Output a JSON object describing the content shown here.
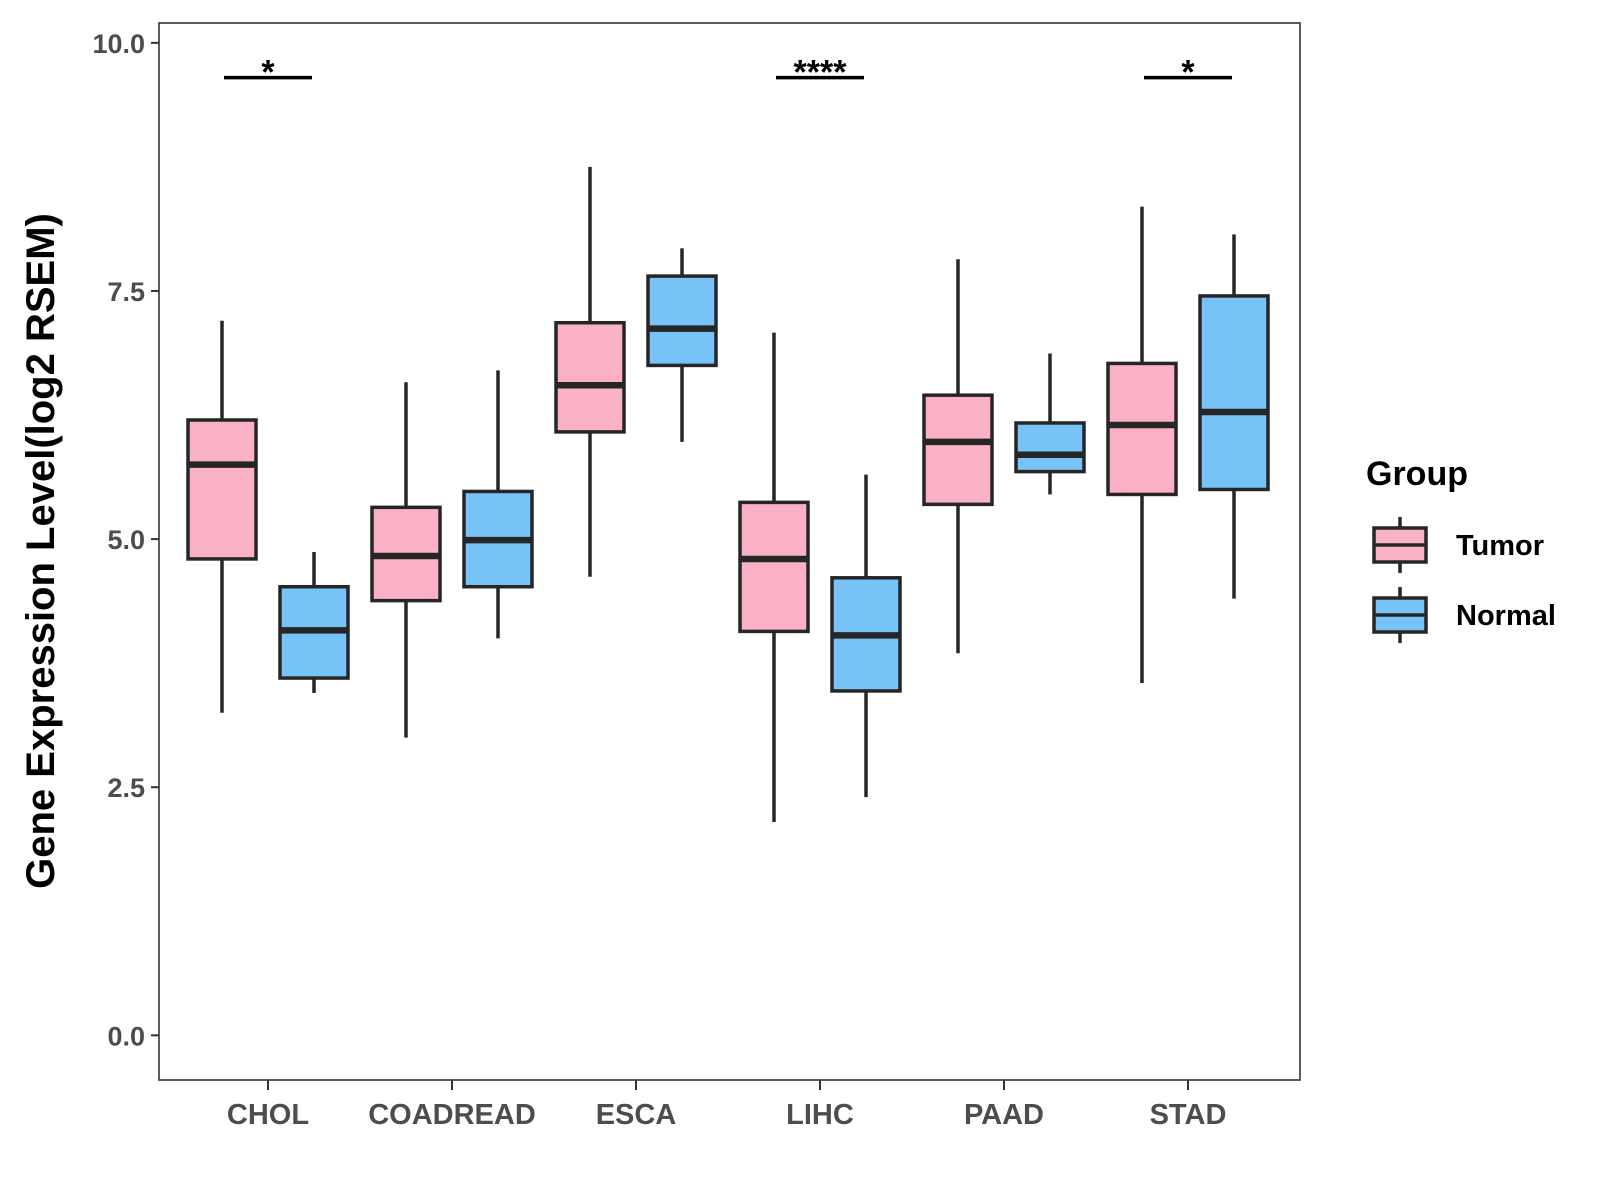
{
  "chart_data": {
    "type": "boxplot",
    "title": "",
    "xlabel": "",
    "ylabel": "Gene Expression Level(log2 RSEM)",
    "ylim": [
      -0.45,
      10.2
    ],
    "yticks": [
      "0.0",
      "2.5",
      "5.0",
      "7.5",
      "10.0"
    ],
    "ytick_values": [
      0,
      2.5,
      5,
      7.5,
      10
    ],
    "categories": [
      "CHOL",
      "COADREAD",
      "ESCA",
      "LIHC",
      "PAAD",
      "STAD"
    ],
    "legend": {
      "title": "Group",
      "position": "right",
      "entries": [
        {
          "name": "Tumor",
          "color": "#fbb1c5"
        },
        {
          "name": "Normal",
          "color": "#77c3f8"
        }
      ]
    },
    "series": [
      {
        "name": "Tumor",
        "color": "#fbb1c5",
        "boxes": [
          {
            "category": "CHOL",
            "min": 3.25,
            "q1": 4.8,
            "median": 5.75,
            "q3": 6.2,
            "max": 7.2
          },
          {
            "category": "COADREAD",
            "min": 3.0,
            "q1": 4.38,
            "median": 4.83,
            "q3": 5.32,
            "max": 6.58
          },
          {
            "category": "ESCA",
            "min": 4.62,
            "q1": 6.08,
            "median": 6.55,
            "q3": 7.18,
            "max": 8.75
          },
          {
            "category": "LIHC",
            "min": 2.15,
            "q1": 4.07,
            "median": 4.8,
            "q3": 5.37,
            "max": 7.08
          },
          {
            "category": "PAAD",
            "min": 3.85,
            "q1": 5.35,
            "median": 5.98,
            "q3": 6.45,
            "max": 7.82
          },
          {
            "category": "STAD",
            "min": 3.55,
            "q1": 5.45,
            "median": 6.15,
            "q3": 6.77,
            "max": 8.35
          }
        ]
      },
      {
        "name": "Normal",
        "color": "#77c3f8",
        "boxes": [
          {
            "category": "CHOL",
            "min": 3.45,
            "q1": 3.6,
            "median": 4.08,
            "q3": 4.52,
            "max": 4.87
          },
          {
            "category": "COADREAD",
            "min": 4.0,
            "q1": 4.52,
            "median": 4.99,
            "q3": 5.48,
            "max": 6.7
          },
          {
            "category": "ESCA",
            "min": 5.98,
            "q1": 6.75,
            "median": 7.12,
            "q3": 7.65,
            "max": 7.93
          },
          {
            "category": "LIHC",
            "min": 2.4,
            "q1": 3.47,
            "median": 4.03,
            "q3": 4.61,
            "max": 5.65
          },
          {
            "category": "PAAD",
            "min": 5.45,
            "q1": 5.68,
            "median": 5.85,
            "q3": 6.17,
            "max": 6.87
          },
          {
            "category": "STAD",
            "min": 4.4,
            "q1": 5.5,
            "median": 6.28,
            "q3": 7.45,
            "max": 8.07
          }
        ]
      }
    ],
    "annotations": [
      {
        "category": "CHOL",
        "label": "*",
        "y": 9.65
      },
      {
        "category": "LIHC",
        "label": "****",
        "y": 9.65
      },
      {
        "category": "STAD",
        "label": "*",
        "y": 9.65
      }
    ]
  }
}
